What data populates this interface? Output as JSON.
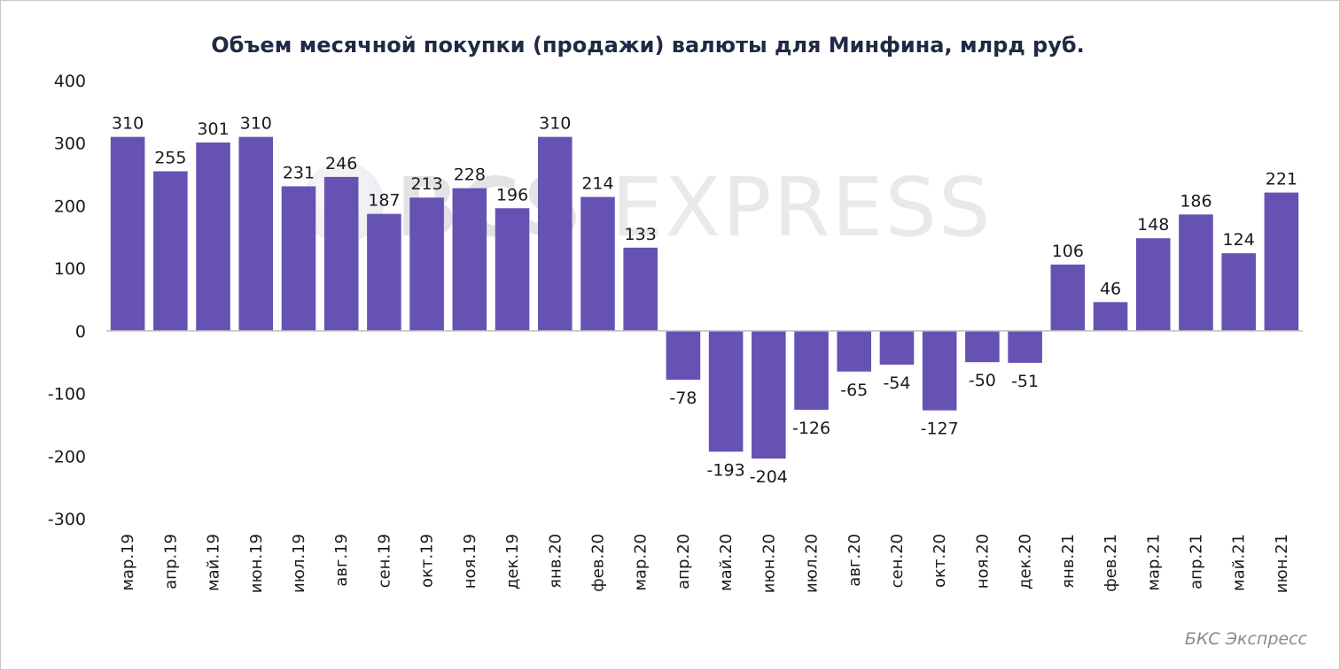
{
  "chart_data": {
    "type": "bar",
    "title": "Объем месячной покупки (продажи) валюты для Минфина, млрд руб.",
    "xlabel": "",
    "ylabel": "",
    "ylim": [
      -300,
      400
    ],
    "yticks": [
      400,
      300,
      200,
      100,
      0,
      -100,
      -200,
      -300
    ],
    "grid": false,
    "legend": "none",
    "bar_color": "#6652b3",
    "categories": [
      "мар.19",
      "апр.19",
      "май.19",
      "июн.19",
      "июл.19",
      "авг.19",
      "сен.19",
      "окт.19",
      "ноя.19",
      "дек.19",
      "янв.20",
      "фев.20",
      "мар.20",
      "апр.20",
      "май.20",
      "июн.20",
      "июл.20",
      "авг.20",
      "сен.20",
      "окт.20",
      "ноя.20",
      "дек.20",
      "янв.21",
      "фев.21",
      "мар.21",
      "апр.21",
      "май.21",
      "июн.21"
    ],
    "values": [
      310,
      255,
      301,
      310,
      231,
      246,
      187,
      213,
      228,
      196,
      310,
      214,
      133,
      -78,
      -193,
      -204,
      -126,
      -65,
      -54,
      -127,
      -50,
      -51,
      106,
      46,
      148,
      186,
      124,
      221
    ]
  },
  "watermark": {
    "bold_part": "BCS",
    "light_part": " EXPRESS"
  },
  "source": "БКС Экспресс"
}
